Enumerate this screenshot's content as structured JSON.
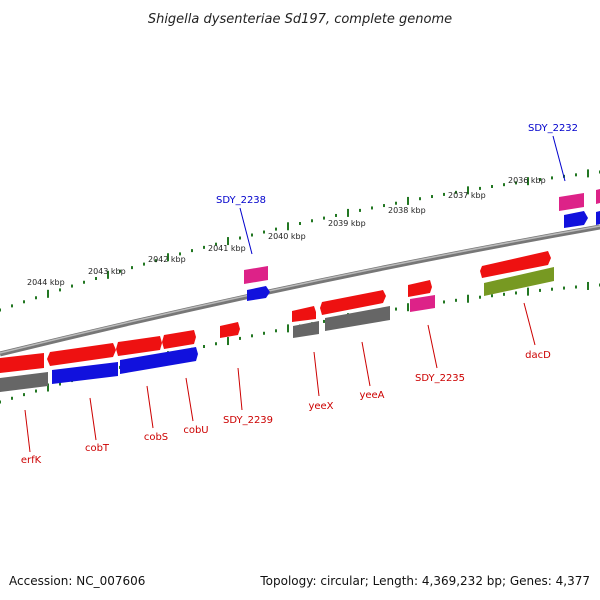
{
  "title": "Shigella dysenteriae Sd197, complete genome",
  "footer": {
    "accession": "Accession: NC_007606",
    "topology": "Topology: circular; Length: 4,369,232 bp; Genes: 4,377"
  },
  "colors": {
    "label_red": "#cc0000",
    "label_blue": "#0000cc",
    "gene_red": "#ee1111",
    "gene_blue": "#1111dd",
    "gene_gray": "#666666",
    "gene_pink": "#dd2288",
    "gene_olive": "#779922",
    "tick_green": "#227722",
    "backbone": "#888888"
  },
  "kbp_labels": [
    "2044 kbp",
    "2043 kbp",
    "2042 kbp",
    "2041 kbp",
    "2040 kbp",
    "2039 kbp",
    "2038 kbp",
    "2037 kbp",
    "2036 kbp"
  ],
  "gene_labels_lower": [
    "erfK",
    "cobT",
    "cobS",
    "cobU",
    "SDY_2239",
    "yeeX",
    "yeeA",
    "SDY_2235",
    "dacD"
  ],
  "gene_labels_upper": [
    "SDY_2238",
    "SDY_2232"
  ]
}
